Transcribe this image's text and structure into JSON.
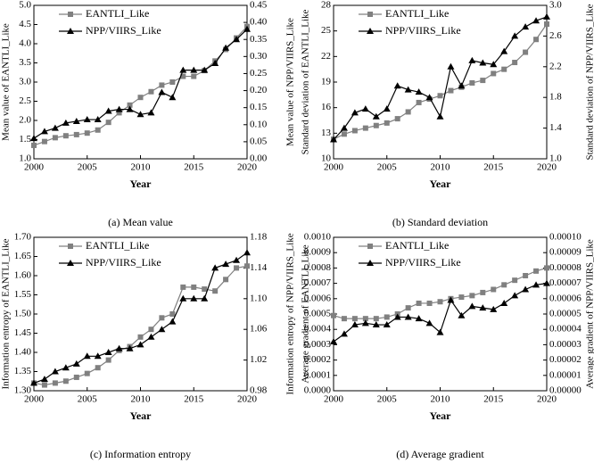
{
  "chart_data": [
    {
      "type": "line",
      "caption": "(a) Mean value",
      "xlabel": "Year",
      "ylabel": "Mean value of EANTLI_Like",
      "y2label": "Mean value of NPP/VIIRS_Like",
      "x": [
        2000,
        2001,
        2002,
        2003,
        2004,
        2005,
        2006,
        2007,
        2008,
        2009,
        2010,
        2011,
        2012,
        2013,
        2014,
        2015,
        2016,
        2017,
        2018,
        2019,
        2020
      ],
      "xlim": [
        2000,
        2020
      ],
      "xticks": [
        2000,
        2005,
        2010,
        2015,
        2020
      ],
      "ylim": [
        1,
        5
      ],
      "yticks": [
        {
          "value": 1,
          "label": "1.0"
        },
        1.5,
        {
          "value": 2,
          "label": "2.0"
        },
        2.5,
        {
          "value": 3,
          "label": "3.0"
        },
        3.5,
        {
          "value": 4,
          "label": "4.0"
        },
        4.5,
        {
          "value": 5,
          "label": "5.0"
        }
      ],
      "y2lim": [
        0,
        0.45
      ],
      "y2ticks": [
        {
          "value": 0,
          "label": "0.00"
        },
        0.05,
        {
          "value": 0.1,
          "label": "0.10"
        },
        0.15,
        {
          "value": 0.2,
          "label": "0.20"
        },
        0.25,
        {
          "value": 0.3,
          "label": "0.30"
        },
        0.35,
        {
          "value": 0.4,
          "label": "0.40"
        },
        0.45
      ],
      "series": [
        {
          "name": "EANTLI_Like",
          "color": "#808080",
          "marker": "square",
          "values": [
            1.35,
            1.45,
            1.55,
            1.6,
            1.63,
            1.67,
            1.75,
            1.95,
            2.2,
            2.4,
            2.6,
            2.75,
            2.92,
            3.0,
            3.15,
            3.15,
            3.3,
            3.55,
            3.85,
            4.15,
            4.45
          ]
        },
        {
          "name": "NPP/VIIRS_Like",
          "color": "#000000",
          "marker": "triangle",
          "axis": "y2",
          "values": [
            0.06,
            0.08,
            0.09,
            0.105,
            0.11,
            0.115,
            0.115,
            0.14,
            0.145,
            0.145,
            0.13,
            0.135,
            0.195,
            0.18,
            0.26,
            0.26,
            0.26,
            0.28,
            0.325,
            0.35,
            0.38
          ]
        }
      ]
    },
    {
      "type": "line",
      "caption": "(b) Standard deviation",
      "xlabel": "Year",
      "ylabel": "Standard deviation of EANTLI_Like",
      "y2label": "Standard deviation of NPP/VIIRS_Like",
      "x": [
        2000,
        2001,
        2002,
        2003,
        2004,
        2005,
        2006,
        2007,
        2008,
        2009,
        2010,
        2011,
        2012,
        2013,
        2014,
        2015,
        2016,
        2017,
        2018,
        2019,
        2020
      ],
      "xlim": [
        2000,
        2020
      ],
      "xticks": [
        2000,
        2005,
        2010,
        2015,
        2020
      ],
      "ylim": [
        10,
        28
      ],
      "yticks": [
        10,
        13,
        16,
        19,
        22,
        25,
        28
      ],
      "y2lim": [
        1,
        3
      ],
      "y2ticks": [
        {
          "value": 1,
          "label": "1.0"
        },
        1.4,
        1.8,
        2.2,
        2.6,
        {
          "value": 3,
          "label": "3.0"
        }
      ],
      "series": [
        {
          "name": "EANTLI_Like",
          "color": "#808080",
          "marker": "square",
          "values": [
            12.3,
            12.9,
            13.3,
            13.6,
            13.9,
            14.2,
            14.7,
            15.5,
            16.6,
            17.0,
            17.4,
            18.0,
            18.4,
            18.9,
            19.2,
            20.0,
            20.5,
            21.3,
            22.5,
            24.0,
            25.8
          ]
        },
        {
          "name": "NPP/VIIRS_Like",
          "color": "#000000",
          "marker": "triangle",
          "axis": "y2",
          "values": [
            1.25,
            1.4,
            1.6,
            1.65,
            1.55,
            1.65,
            1.95,
            1.9,
            1.87,
            1.8,
            1.55,
            2.2,
            1.95,
            2.28,
            2.25,
            2.23,
            2.4,
            2.6,
            2.72,
            2.8,
            2.85
          ]
        }
      ]
    },
    {
      "type": "line",
      "caption": "(c) Information entropy",
      "xlabel": "Year",
      "ylabel": "Information entropy of EANTLI_Like",
      "y2label": "Information entropy of NPP/VIIRS_Like",
      "x": [
        2000,
        2001,
        2002,
        2003,
        2004,
        2005,
        2006,
        2007,
        2008,
        2009,
        2010,
        2011,
        2012,
        2013,
        2014,
        2015,
        2016,
        2017,
        2018,
        2019,
        2020
      ],
      "xlim": [
        2000,
        2020
      ],
      "xticks": [
        2000,
        2005,
        2010,
        2015,
        2020
      ],
      "ylim": [
        1.3,
        1.7
      ],
      "yticks": [
        {
          "value": 1.3,
          "label": "1.30"
        },
        1.35,
        {
          "value": 1.4,
          "label": "1.40"
        },
        1.45,
        {
          "value": 1.5,
          "label": "1.50"
        },
        1.55,
        {
          "value": 1.6,
          "label": "1.60"
        },
        1.65,
        {
          "value": 1.7,
          "label": "1.70"
        }
      ],
      "y2lim": [
        0.98,
        1.18
      ],
      "y2ticks": [
        0.98,
        1.02,
        1.06,
        {
          "value": 1.1,
          "label": "1.10"
        },
        1.14,
        1.18
      ],
      "series": [
        {
          "name": "EANTLI_Like",
          "color": "#808080",
          "marker": "square",
          "values": [
            1.32,
            1.315,
            1.32,
            1.325,
            1.335,
            1.345,
            1.36,
            1.38,
            1.405,
            1.415,
            1.44,
            1.46,
            1.49,
            1.5,
            1.57,
            1.57,
            1.565,
            1.56,
            1.59,
            1.62,
            1.625
          ]
        },
        {
          "name": "NPP/VIIRS_Like",
          "color": "#000000",
          "marker": "triangle",
          "axis": "y2",
          "values": [
            0.99,
            0.995,
            1.005,
            1.01,
            1.015,
            1.025,
            1.025,
            1.03,
            1.035,
            1.035,
            1.04,
            1.05,
            1.06,
            1.07,
            1.1,
            1.1,
            1.1,
            1.14,
            1.145,
            1.15,
            1.16
          ]
        }
      ]
    },
    {
      "type": "line",
      "caption": "(d) Average gradient",
      "xlabel": "Year",
      "ylabel": "Average gradient of EANTLI_Like",
      "y2label": "Average gradient of NPP/VIIRS_Like",
      "x": [
        2000,
        2001,
        2002,
        2003,
        2004,
        2005,
        2006,
        2007,
        2008,
        2009,
        2010,
        2011,
        2012,
        2013,
        2014,
        2015,
        2016,
        2017,
        2018,
        2019,
        2020
      ],
      "xlim": [
        2000,
        2020
      ],
      "xticks": [
        2000,
        2005,
        2010,
        2015,
        2020
      ],
      "ylim": [
        0,
        0.001
      ],
      "yticks": [
        {
          "value": 0,
          "label": "0.0000"
        },
        0.0001,
        0.0002,
        0.0003,
        0.0004,
        0.0005,
        0.0006,
        0.0007,
        0.0008,
        0.0009,
        {
          "value": 0.001,
          "label": "0.0010"
        }
      ],
      "y2lim": [
        0,
        0.0001
      ],
      "y2ticks": [
        {
          "value": 0,
          "label": "0.00000"
        },
        1e-05,
        2e-05,
        3e-05,
        4e-05,
        5e-05,
        6e-05,
        7e-05,
        8e-05,
        9e-05,
        {
          "value": 0.0001,
          "label": "0.00010"
        }
      ],
      "series": [
        {
          "name": "EANTLI_Like",
          "color": "#808080",
          "marker": "square",
          "values": [
            0.00049,
            0.00047,
            0.00047,
            0.00047,
            0.00047,
            0.00048,
            0.0005,
            0.00054,
            0.00057,
            0.00057,
            0.00058,
            0.0006,
            0.00061,
            0.00062,
            0.00064,
            0.00066,
            0.00069,
            0.00072,
            0.00075,
            0.00078,
            0.0008
          ]
        },
        {
          "name": "NPP/VIIRS_Like",
          "color": "#000000",
          "marker": "triangle",
          "axis": "y2",
          "values": [
            3.2e-05,
            3.7e-05,
            4.3e-05,
            4.4e-05,
            4.3e-05,
            4.3e-05,
            4.8e-05,
            4.8e-05,
            4.7e-05,
            4.4e-05,
            3.8e-05,
            5.9e-05,
            4.9e-05,
            5.5e-05,
            5.4e-05,
            5.3e-05,
            5.7e-05,
            6.2e-05,
            6.6e-05,
            6.9e-05,
            7e-05
          ]
        }
      ]
    }
  ]
}
